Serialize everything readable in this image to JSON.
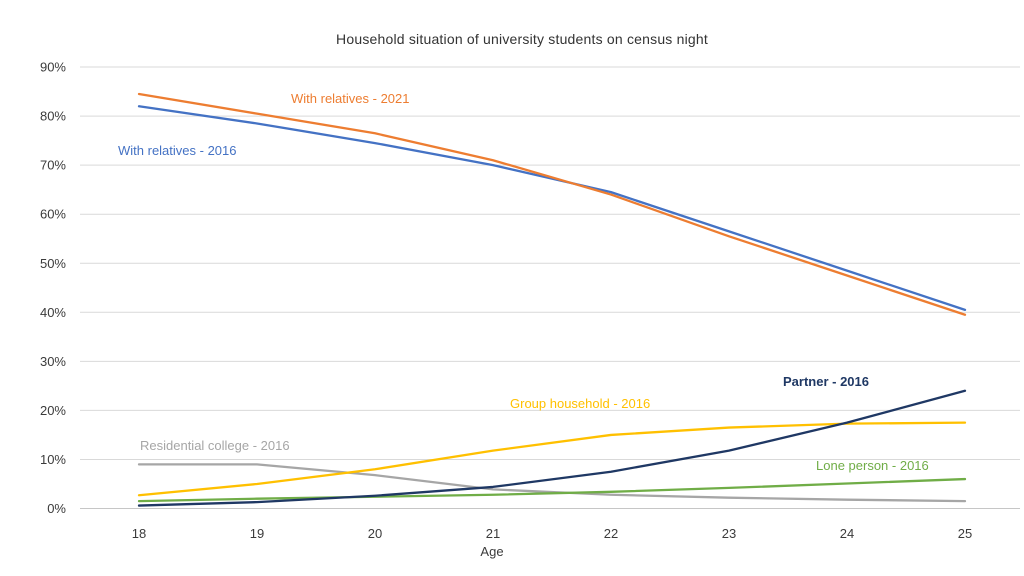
{
  "chart_data": {
    "type": "line",
    "title": "Household situation of university students on census night",
    "xlabel": "Age",
    "ylabel": "",
    "x": [
      18,
      19,
      20,
      21,
      22,
      23,
      24,
      25
    ],
    "xticks": [
      "18",
      "19",
      "20",
      "21",
      "22",
      "23",
      "24",
      "25"
    ],
    "yticks": [
      "0%",
      "10%",
      "20%",
      "30%",
      "40%",
      "50%",
      "60%",
      "70%",
      "80%",
      "90%"
    ],
    "ylim": [
      0,
      90
    ],
    "ytick_step": 10,
    "grid": true,
    "legend_position": "inline-labels-near-lines",
    "series": [
      {
        "name": "With relatives - 2021",
        "color": "#ED7D31",
        "values": [
          84.5,
          80.5,
          76.5,
          71,
          64,
          55.5,
          47.5,
          39.5
        ]
      },
      {
        "name": "With relatives - 2016",
        "color": "#4472C4",
        "values": [
          82,
          78.5,
          74.5,
          70,
          64.5,
          56.5,
          48.5,
          40.5
        ]
      },
      {
        "name": "Partner - 2016",
        "color": "#1F3864",
        "values": [
          0.6,
          1.3,
          2.6,
          4.4,
          7.5,
          11.8,
          17.5,
          24
        ]
      },
      {
        "name": "Group household  - 2016",
        "color": "#FFC000",
        "values": [
          2.7,
          5,
          8,
          11.8,
          15,
          16.5,
          17.3,
          17.5
        ]
      },
      {
        "name": "Residential college - 2016",
        "color": "#A6A6A6",
        "values": [
          9,
          9,
          6.8,
          3.9,
          2.8,
          2.2,
          1.8,
          1.5
        ]
      },
      {
        "name": "Lone person - 2016",
        "color": "#70AD47",
        "values": [
          1.5,
          2,
          2.4,
          2.8,
          3.4,
          4.2,
          5.1,
          6
        ]
      }
    ],
    "colors": {
      "gridline": "#D9D9D9",
      "axis_line": "#C6C6C6",
      "tick_text": "#3b3b3b"
    }
  }
}
